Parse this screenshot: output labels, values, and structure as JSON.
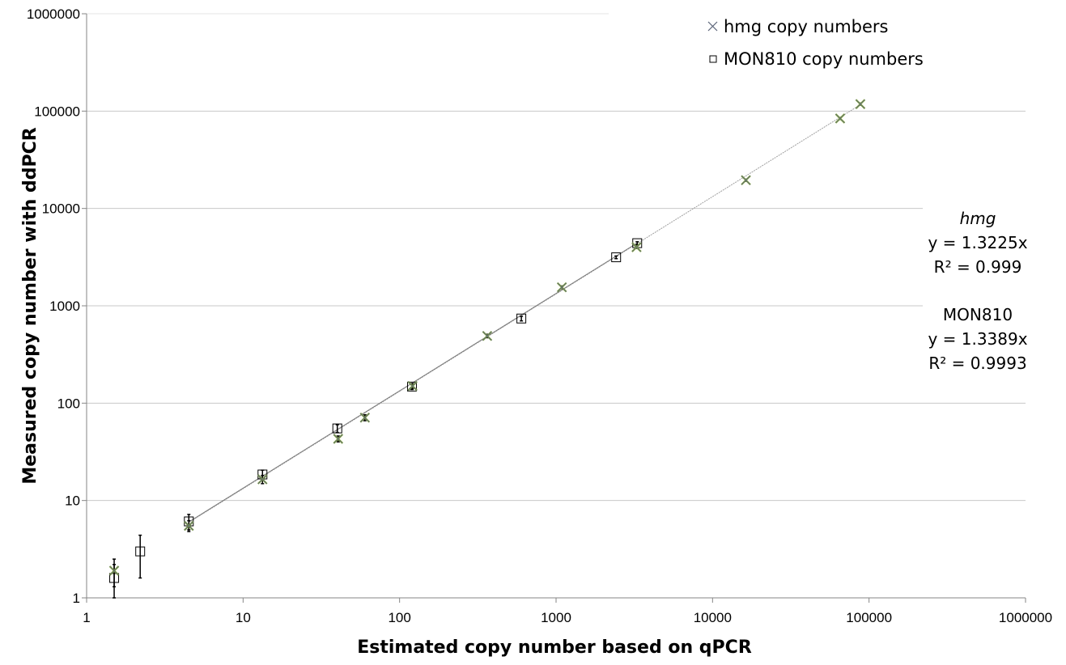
{
  "chart_data": {
    "type": "scatter",
    "x_scale": "log",
    "y_scale": "log",
    "xlabel": "Estimated copy number based on qPCR",
    "ylabel": "Measured copy number with ddPCR",
    "xlim": [
      1,
      1000000
    ],
    "ylim": [
      1,
      1000000
    ],
    "x_tick_labels": [
      "1",
      "10",
      "100",
      "1000",
      "10000",
      "100000",
      "1000000"
    ],
    "y_tick_labels": [
      "1",
      "10",
      "100",
      "1000",
      "10000",
      "100000",
      "1000000"
    ],
    "grid": "horizontal",
    "legend_position": "top-right",
    "series": [
      {
        "name": "hmg copy numbers",
        "marker": "x",
        "color": "#5a6478",
        "points": [
          {
            "x": 1.5,
            "y": 1.9,
            "err": 0.6
          },
          {
            "x": 4.5,
            "y": 5.5,
            "err": 0.7
          },
          {
            "x": 13.3,
            "y": 16.5,
            "err": 1.6
          },
          {
            "x": 40.5,
            "y": 43,
            "err": 3
          },
          {
            "x": 60,
            "y": 71,
            "err": 5
          },
          {
            "x": 121,
            "y": 150,
            "err": 8
          },
          {
            "x": 363,
            "y": 490,
            "err": 20
          },
          {
            "x": 1089,
            "y": 1550,
            "err": 50
          },
          {
            "x": 3267,
            "y": 4000,
            "err": 120
          },
          {
            "x": 16335,
            "y": 19500,
            "err": 500
          },
          {
            "x": 65340,
            "y": 84000,
            "err": 2000
          },
          {
            "x": 88000,
            "y": 118000,
            "err": 3000
          }
        ]
      },
      {
        "name": "MON810 copy numbers",
        "marker": "square",
        "color": "#000000",
        "points": [
          {
            "x": 1.5,
            "y": 1.6,
            "err": 0.6
          },
          {
            "x": 2.2,
            "y": 3.0,
            "err": 1.4
          },
          {
            "x": 4.5,
            "y": 6.1,
            "err": 1.1
          },
          {
            "x": 13.3,
            "y": 18.5,
            "err": 2
          },
          {
            "x": 40,
            "y": 55,
            "err": 5
          },
          {
            "x": 120,
            "y": 148,
            "err": 10
          },
          {
            "x": 600,
            "y": 740,
            "err": 40
          },
          {
            "x": 2420,
            "y": 3150,
            "err": 100
          },
          {
            "x": 3300,
            "y": 4400,
            "err": 150
          }
        ]
      }
    ],
    "trendlines": [
      {
        "series": "hmg",
        "x_from": 4.5,
        "x_to": 88000
      },
      {
        "series": "MON810",
        "x_from": 4.5,
        "x_to": 3300
      }
    ],
    "annotations": [
      {
        "lines": [
          "hmg",
          "y = 1.3225x",
          "R² = 0.999"
        ],
        "italic_first": true
      },
      {
        "lines": [
          "MON810",
          "y = 1.3389x",
          "R² = 0.9993"
        ],
        "italic_first": false
      }
    ]
  }
}
